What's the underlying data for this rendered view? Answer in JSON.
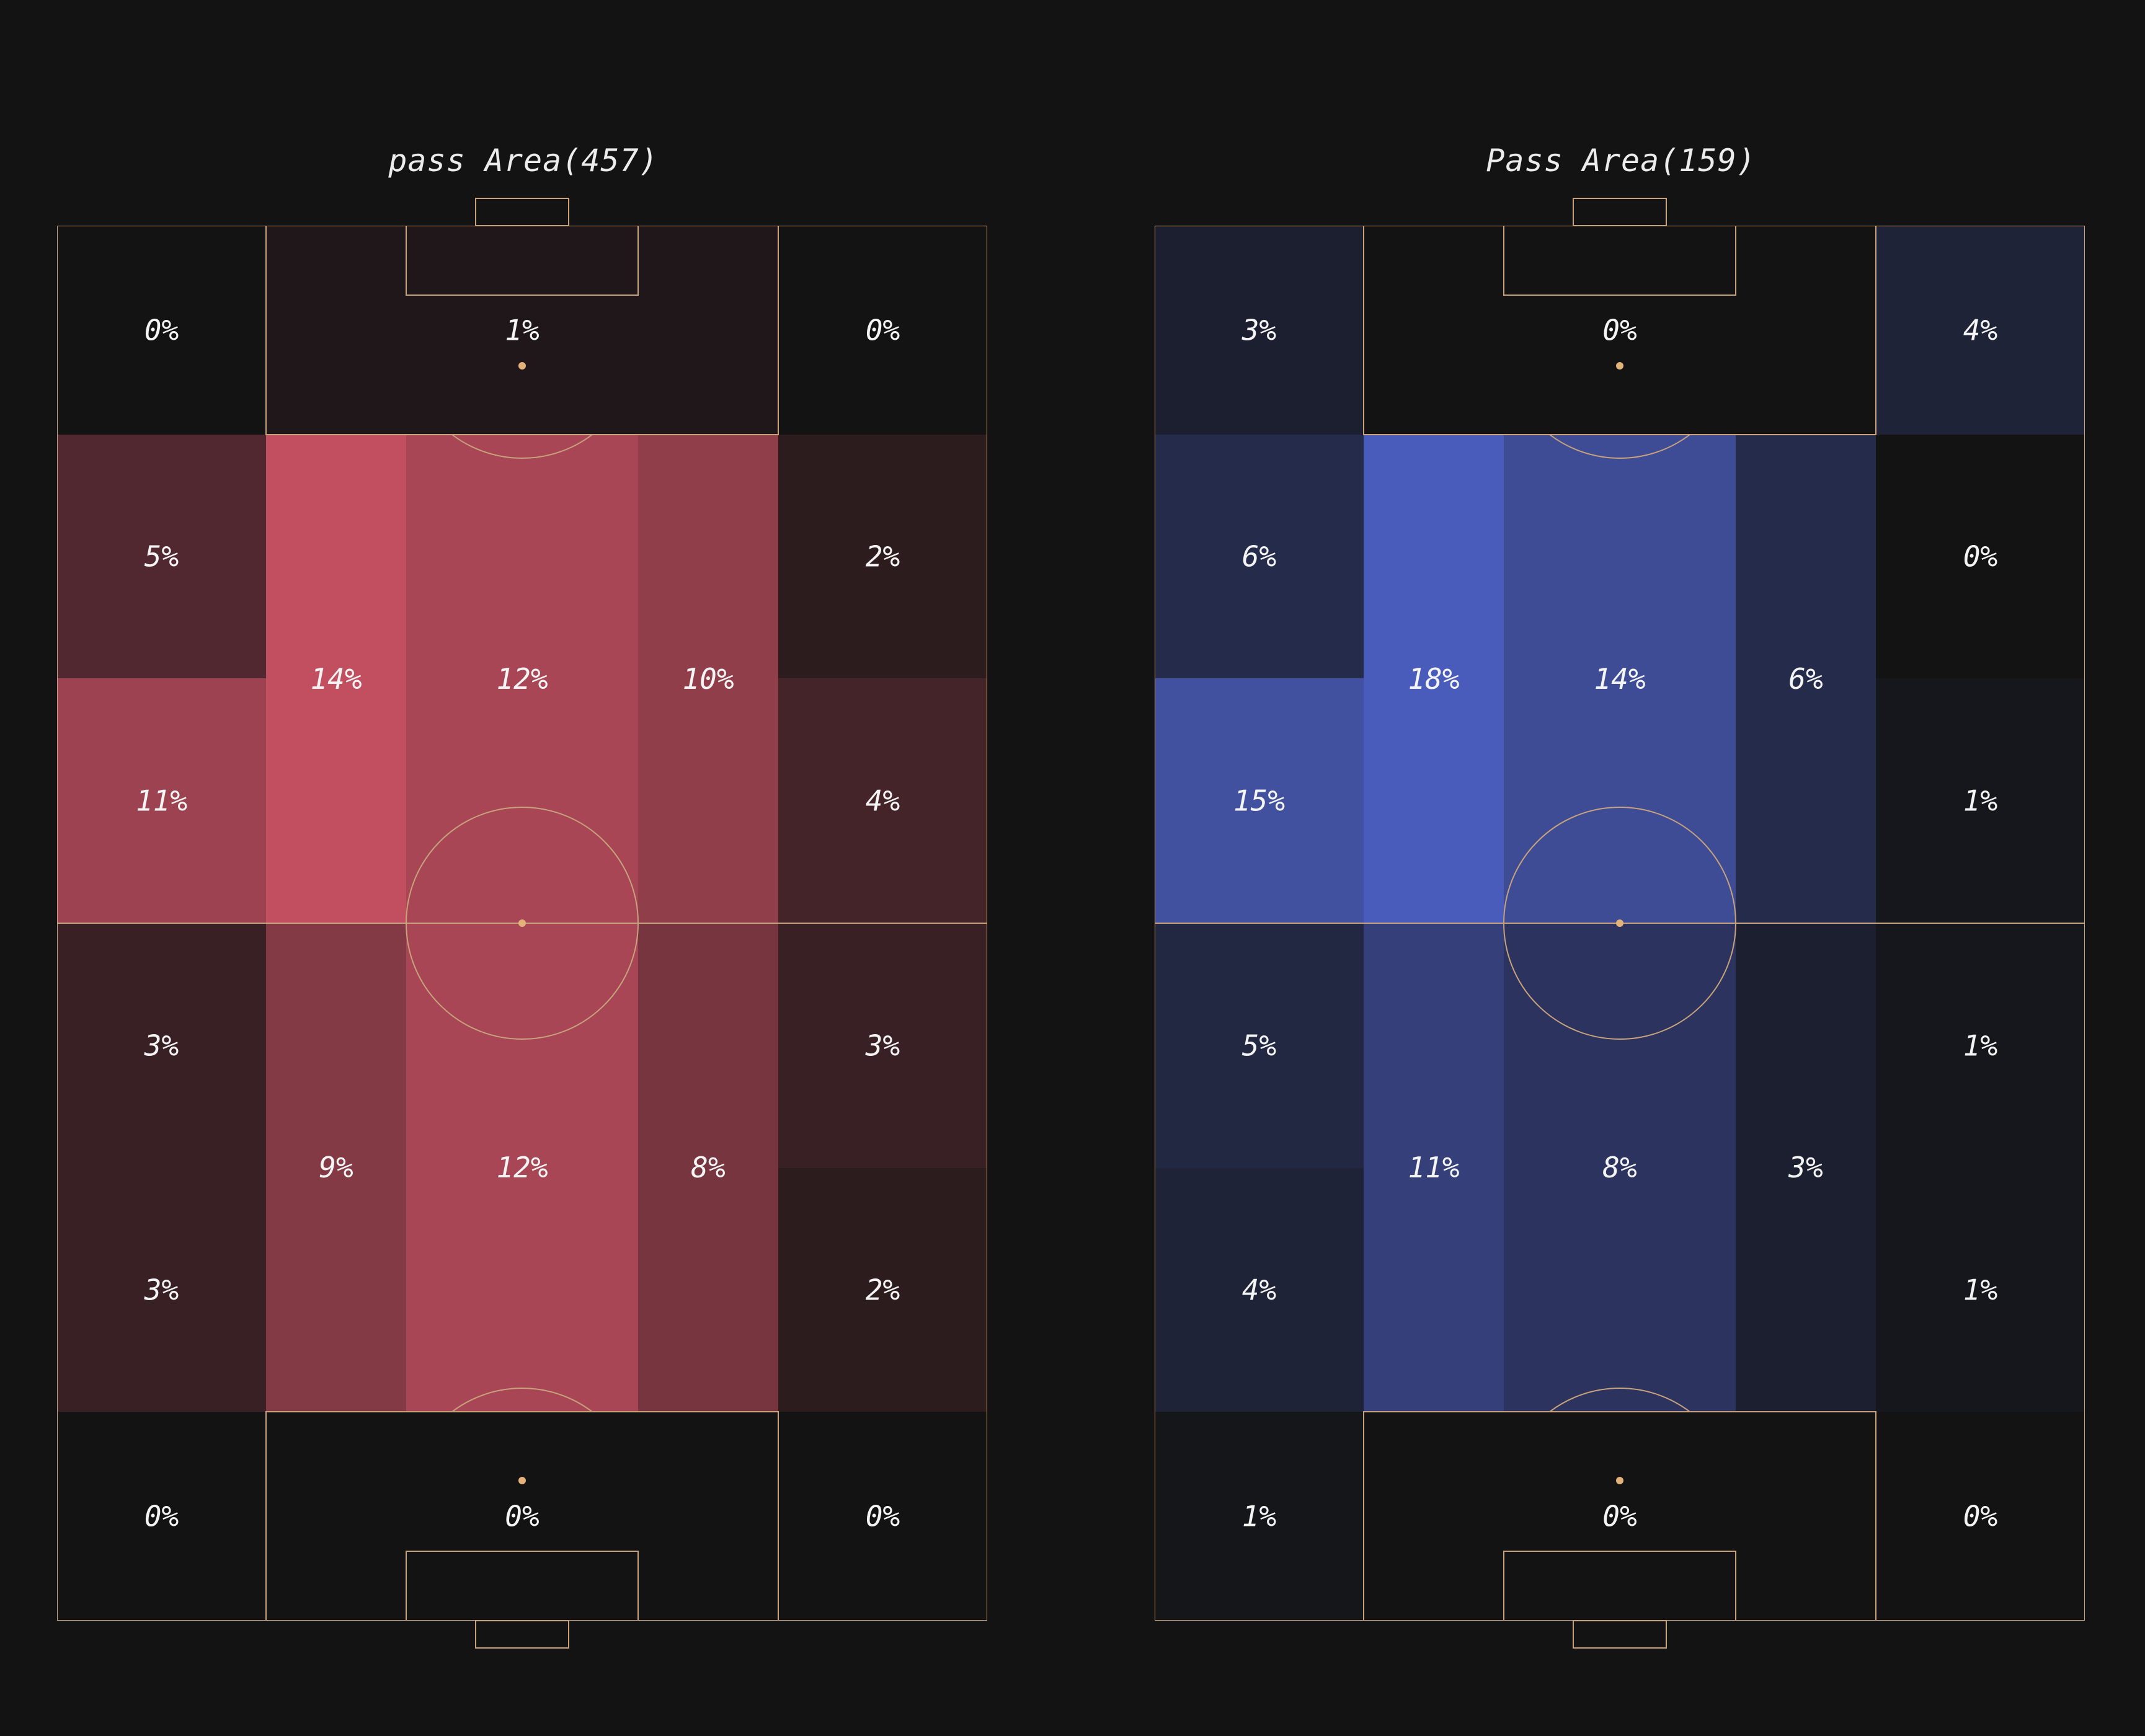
{
  "chart_data": [
    {
      "type": "heatmap",
      "title": "pass Area(457)",
      "color": "#c14f60",
      "zones": [
        {
          "label": "0%",
          "value": 0
        },
        {
          "label": "1%",
          "value": 1
        },
        {
          "label": "0%",
          "value": 0
        },
        {
          "label": "5%",
          "value": 5
        },
        {
          "label": "14%",
          "value": 14
        },
        {
          "label": "12%",
          "value": 12
        },
        {
          "label": "10%",
          "value": 10
        },
        {
          "label": "2%",
          "value": 2
        },
        {
          "label": "11%",
          "value": 11
        },
        {
          "label": "4%",
          "value": 4
        },
        {
          "label": "3%",
          "value": 3
        },
        {
          "label": "9%",
          "value": 9
        },
        {
          "label": "12%",
          "value": 12
        },
        {
          "label": "8%",
          "value": 8
        },
        {
          "label": "3%",
          "value": 3
        },
        {
          "label": "3%",
          "value": 3
        },
        {
          "label": "2%",
          "value": 2
        },
        {
          "label": "0%",
          "value": 0
        },
        {
          "label": "0%",
          "value": 0
        },
        {
          "label": "0%",
          "value": 0
        }
      ]
    },
    {
      "type": "heatmap",
      "title": "Pass Area(159)",
      "color": "#4a5cbb",
      "zones": [
        {
          "label": "3%",
          "value": 3
        },
        {
          "label": "0%",
          "value": 0
        },
        {
          "label": "4%",
          "value": 4
        },
        {
          "label": "6%",
          "value": 6
        },
        {
          "label": "18%",
          "value": 18
        },
        {
          "label": "14%",
          "value": 14
        },
        {
          "label": "6%",
          "value": 6
        },
        {
          "label": "0%",
          "value": 0
        },
        {
          "label": "15%",
          "value": 15
        },
        {
          "label": "1%",
          "value": 1
        },
        {
          "label": "5%",
          "value": 5
        },
        {
          "label": "11%",
          "value": 11
        },
        {
          "label": "8%",
          "value": 8
        },
        {
          "label": "3%",
          "value": 3
        },
        {
          "label": "1%",
          "value": 1
        },
        {
          "label": "4%",
          "value": 4
        },
        {
          "label": "1%",
          "value": 1
        },
        {
          "label": "1%",
          "value": 0.8
        },
        {
          "label": "0%",
          "value": 0
        },
        {
          "label": "0%",
          "value": 0
        }
      ]
    }
  ],
  "colors": {
    "background": "#131313",
    "line": "#c8a27c",
    "spot": "#e2b279",
    "text": "#f4f4f4"
  }
}
